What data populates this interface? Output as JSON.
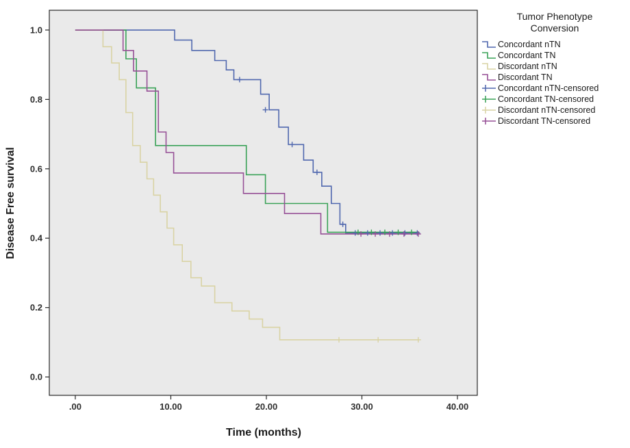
{
  "figure": {
    "background": "#ffffff",
    "plot_background": "#eaeaea",
    "frame_color": "#262626",
    "tick_color": "#262626"
  },
  "chart_data": {
    "type": "line",
    "subtype": "kaplan-meier-step",
    "title": "",
    "xlabel": "Time (months)",
    "ylabel": "Disease Free survival",
    "xlim": [
      -2.72,
      42.08
    ],
    "ylim": [
      -0.053,
      1.057
    ],
    "grid": false,
    "xticks": [
      {
        "value": 0,
        "label": ".00"
      },
      {
        "value": 10,
        "label": "10.00"
      },
      {
        "value": 20,
        "label": "20.00"
      },
      {
        "value": 30,
        "label": "30.00"
      },
      {
        "value": 40,
        "label": "40.00"
      }
    ],
    "yticks": [
      {
        "value": 0.0,
        "label": "0.0"
      },
      {
        "value": 0.2,
        "label": "0.2"
      },
      {
        "value": 0.4,
        "label": "0.4"
      },
      {
        "value": 0.6,
        "label": "0.6"
      },
      {
        "value": 0.8,
        "label": "0.8"
      },
      {
        "value": 1.0,
        "label": "1.0"
      }
    ],
    "legend": {
      "position": "right-top",
      "title_lines": [
        "Tumor Phenotype",
        "Conversion"
      ],
      "entries": [
        {
          "label": "Concordant nTN",
          "color": "#4f67ae",
          "censored": false
        },
        {
          "label": "Concordant TN",
          "color": "#39a257",
          "censored": false
        },
        {
          "label": "Discordant nTN",
          "color": "#d9d3a4",
          "censored": false
        },
        {
          "label": "Discordant TN",
          "color": "#964f96",
          "censored": false
        },
        {
          "label": "Concordant nTN-censored",
          "color": "#4f67ae",
          "censored": true
        },
        {
          "label": "Concordant TN-censored",
          "color": "#39a257",
          "censored": true
        },
        {
          "label": "Discordant nTN-censored",
          "color": "#d9d3a4",
          "censored": true
        },
        {
          "label": "Discordant TN-censored",
          "color": "#964f96",
          "censored": true
        }
      ]
    },
    "series": [
      {
        "name": "Concordant nTN",
        "color": "#4f67ae",
        "points": [
          [
            0,
            1.0
          ],
          [
            10.4,
            1.0
          ],
          [
            10.4,
            0.971
          ],
          [
            12.2,
            0.971
          ],
          [
            12.2,
            0.941
          ],
          [
            14.6,
            0.941
          ],
          [
            14.6,
            0.912
          ],
          [
            15.8,
            0.912
          ],
          [
            15.8,
            0.885
          ],
          [
            16.6,
            0.885
          ],
          [
            16.6,
            0.857
          ],
          [
            19.4,
            0.857
          ],
          [
            19.4,
            0.815
          ],
          [
            20.3,
            0.815
          ],
          [
            20.3,
            0.77
          ],
          [
            21.3,
            0.77
          ],
          [
            21.3,
            0.72
          ],
          [
            22.3,
            0.72
          ],
          [
            22.3,
            0.67
          ],
          [
            23.9,
            0.67
          ],
          [
            23.9,
            0.625
          ],
          [
            24.9,
            0.625
          ],
          [
            24.9,
            0.59
          ],
          [
            25.8,
            0.59
          ],
          [
            25.8,
            0.55
          ],
          [
            26.8,
            0.55
          ],
          [
            26.8,
            0.5
          ],
          [
            27.7,
            0.5
          ],
          [
            27.7,
            0.44
          ],
          [
            28.3,
            0.44
          ],
          [
            28.3,
            0.415
          ],
          [
            36,
            0.415
          ]
        ]
      },
      {
        "name": "Concordant TN",
        "color": "#39a257",
        "points": [
          [
            0,
            1.0
          ],
          [
            5.3,
            1.0
          ],
          [
            5.3,
            0.917
          ],
          [
            6.4,
            0.917
          ],
          [
            6.4,
            0.833
          ],
          [
            8.4,
            0.833
          ],
          [
            8.4,
            0.667
          ],
          [
            17.9,
            0.667
          ],
          [
            17.9,
            0.583
          ],
          [
            19.9,
            0.583
          ],
          [
            19.9,
            0.5
          ],
          [
            26.4,
            0.5
          ],
          [
            26.4,
            0.417
          ],
          [
            36,
            0.417
          ]
        ]
      },
      {
        "name": "Discordant nTN",
        "color": "#d9d3a4",
        "points": [
          [
            0,
            1.0
          ],
          [
            2.9,
            1.0
          ],
          [
            2.9,
            0.952
          ],
          [
            3.8,
            0.952
          ],
          [
            3.8,
            0.905
          ],
          [
            4.6,
            0.905
          ],
          [
            4.6,
            0.857
          ],
          [
            5.3,
            0.857
          ],
          [
            5.3,
            0.762
          ],
          [
            6.0,
            0.762
          ],
          [
            6.0,
            0.667
          ],
          [
            6.8,
            0.667
          ],
          [
            6.8,
            0.619
          ],
          [
            7.5,
            0.619
          ],
          [
            7.5,
            0.571
          ],
          [
            8.2,
            0.571
          ],
          [
            8.2,
            0.524
          ],
          [
            8.9,
            0.524
          ],
          [
            8.9,
            0.476
          ],
          [
            9.6,
            0.476
          ],
          [
            9.6,
            0.429
          ],
          [
            10.3,
            0.429
          ],
          [
            10.3,
            0.381
          ],
          [
            11.2,
            0.381
          ],
          [
            11.2,
            0.333
          ],
          [
            12.1,
            0.333
          ],
          [
            12.1,
            0.286
          ],
          [
            13.2,
            0.286
          ],
          [
            13.2,
            0.262
          ],
          [
            14.6,
            0.262
          ],
          [
            14.6,
            0.214
          ],
          [
            16.4,
            0.214
          ],
          [
            16.4,
            0.19
          ],
          [
            18.2,
            0.19
          ],
          [
            18.2,
            0.167
          ],
          [
            19.6,
            0.167
          ],
          [
            19.6,
            0.143
          ],
          [
            21.4,
            0.143
          ],
          [
            21.4,
            0.107
          ],
          [
            36,
            0.107
          ]
        ]
      },
      {
        "name": "Discordant TN",
        "color": "#964f96",
        "points": [
          [
            0,
            1.0
          ],
          [
            5.0,
            1.0
          ],
          [
            5.0,
            0.941
          ],
          [
            6.1,
            0.941
          ],
          [
            6.1,
            0.882
          ],
          [
            7.5,
            0.882
          ],
          [
            7.5,
            0.824
          ],
          [
            8.7,
            0.824
          ],
          [
            8.7,
            0.706
          ],
          [
            9.5,
            0.706
          ],
          [
            9.5,
            0.647
          ],
          [
            10.3,
            0.647
          ],
          [
            10.3,
            0.588
          ],
          [
            17.6,
            0.588
          ],
          [
            17.6,
            0.529
          ],
          [
            21.9,
            0.529
          ],
          [
            21.9,
            0.471
          ],
          [
            25.7,
            0.471
          ],
          [
            25.7,
            0.412
          ],
          [
            36,
            0.412
          ]
        ]
      }
    ],
    "censor_marks": [
      {
        "series": "Concordant nTN",
        "color": "#4f67ae",
        "points": [
          [
            17.2,
            0.857
          ],
          [
            19.9,
            0.77
          ],
          [
            22.7,
            0.67
          ],
          [
            25.3,
            0.59
          ],
          [
            28.0,
            0.44
          ],
          [
            29.3,
            0.415
          ],
          [
            30.6,
            0.415
          ],
          [
            31.9,
            0.415
          ],
          [
            33.2,
            0.415
          ],
          [
            34.5,
            0.415
          ],
          [
            35.8,
            0.415
          ]
        ]
      },
      {
        "series": "Concordant TN",
        "color": "#39a257",
        "points": [
          [
            29.6,
            0.417
          ],
          [
            31.0,
            0.417
          ],
          [
            32.4,
            0.417
          ],
          [
            33.8,
            0.417
          ],
          [
            35.2,
            0.417
          ]
        ]
      },
      {
        "series": "Discordant nTN",
        "color": "#d9d3a4",
        "points": [
          [
            27.6,
            0.107
          ],
          [
            31.7,
            0.107
          ],
          [
            35.9,
            0.107
          ]
        ]
      },
      {
        "series": "Discordant TN",
        "color": "#964f96",
        "points": [
          [
            29.9,
            0.412
          ],
          [
            31.4,
            0.412
          ],
          [
            32.9,
            0.412
          ],
          [
            34.4,
            0.412
          ],
          [
            35.9,
            0.412
          ]
        ]
      }
    ]
  }
}
